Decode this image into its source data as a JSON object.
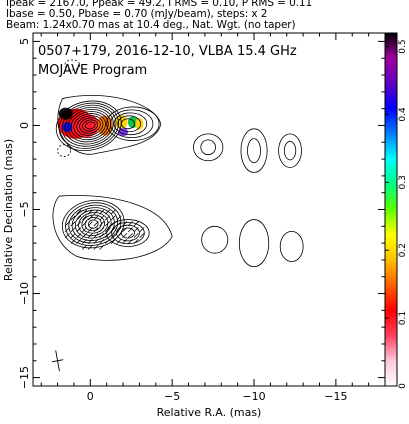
{
  "header": {
    "line1": "Ipeak = 2167.0, Ppeak = 49.2, I RMS = 0.10, P RMS = 0.11",
    "line2": "Ibase = 0.50, Pbase = 0.70 (mJy/beam), steps: x 2",
    "line3": "Beam: 1.24x0.70 mas at 10.4 deg., Nat. Wgt. (no taper)"
  },
  "chart_data": {
    "type": "contour",
    "title": "0507+179, 2016-12-10, VLBA 15.4 GHz",
    "subtitle": "MOJAVE Program",
    "xlabel": "Relative R.A. (mas)",
    "ylabel": "Relative Decination (mas)",
    "xlim": [
      3.5,
      -18
    ],
    "ylim": [
      -15.5,
      5.5
    ],
    "x_ticks": [
      0,
      -5,
      -10,
      -15
    ],
    "y_ticks": [
      5,
      0,
      -5,
      -10,
      -15
    ],
    "colorbar": {
      "ticks": [
        0,
        0.1,
        0.2,
        0.3,
        0.4,
        0.5
      ],
      "range": [
        0,
        0.52
      ],
      "colors": [
        "#ffffff",
        "#ffc8d8",
        "#ff4060",
        "#ff0000",
        "#ff6000",
        "#ffc000",
        "#ffff00",
        "#60ff00",
        "#00ff80",
        "#00ffff",
        "#0080ff",
        "#0000ff",
        "#6000c0",
        "#a000a0",
        "#000000"
      ]
    },
    "panels": [
      {
        "name": "total-intensity-with-polarization",
        "center_y": 0,
        "core": {
          "x": 0,
          "y": 0,
          "contours": 11
        },
        "components": [
          {
            "x": -2.3,
            "y": 0.1,
            "contours": 5
          },
          {
            "x": -7.2,
            "y": -1.3
          },
          {
            "x": -10,
            "y": -1.5
          },
          {
            "x": -12.2,
            "y": -1.5
          }
        ]
      },
      {
        "name": "polarized-intensity-with-evpa",
        "center_y": -6,
        "core": {
          "x": 0,
          "y": -6
        }
      }
    ],
    "beam": {
      "major_mas": 1.24,
      "minor_mas": 0.7,
      "pa_deg": 10.4,
      "x": 2,
      "y": -14
    }
  }
}
